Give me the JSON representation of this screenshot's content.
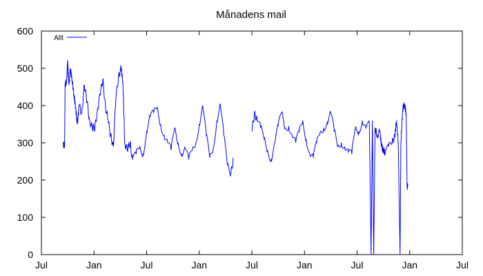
{
  "chart_data": {
    "type": "line",
    "title": "Månadens mail",
    "xlabel": "",
    "ylabel": "",
    "ylim": [
      0,
      600
    ],
    "y_ticks": [
      "0",
      "100",
      "200",
      "300",
      "400",
      "500",
      "600"
    ],
    "x_tick_labels": [
      "Jul",
      "Jan",
      "Jul",
      "Jan",
      "Jul",
      "Jan",
      "Jul",
      "Jan",
      "Jul"
    ],
    "x_range_months": [
      0,
      48
    ],
    "grid": false,
    "legend_position": "top-left",
    "series": [
      {
        "name": "Allt",
        "color": "#0000ff",
        "points": [
          [
            2.5,
            295
          ],
          [
            2.6,
            292
          ],
          [
            2.65,
            300
          ],
          [
            2.7,
            455
          ],
          [
            2.9,
            470
          ],
          [
            3.0,
            520
          ],
          [
            3.15,
            455
          ],
          [
            3.3,
            500
          ],
          [
            3.5,
            470
          ],
          [
            3.7,
            430
          ],
          [
            3.9,
            395
          ],
          [
            4.1,
            350
          ],
          [
            4.3,
            400
          ],
          [
            4.6,
            380
          ],
          [
            4.9,
            455
          ],
          [
            5.2,
            410
          ],
          [
            5.5,
            360
          ],
          [
            5.8,
            340
          ],
          [
            6.1,
            340
          ],
          [
            6.4,
            390
          ],
          [
            6.7,
            430
          ],
          [
            7.0,
            470
          ],
          [
            7.3,
            400
          ],
          [
            7.6,
            360
          ],
          [
            7.9,
            320
          ],
          [
            8.2,
            290
          ],
          [
            8.5,
            420
          ],
          [
            8.8,
            480
          ],
          [
            9.1,
            500
          ],
          [
            9.3,
            460
          ],
          [
            9.5,
            300
          ],
          [
            9.8,
            280
          ],
          [
            10.1,
            300
          ],
          [
            10.4,
            255
          ],
          [
            10.8,
            270
          ],
          [
            11.2,
            290
          ],
          [
            11.6,
            270
          ],
          [
            12.0,
            330
          ],
          [
            12.4,
            370
          ],
          [
            12.8,
            380
          ],
          [
            13.2,
            395
          ],
          [
            13.6,
            350
          ],
          [
            14.0,
            320
          ],
          [
            14.4,
            300
          ],
          [
            14.8,
            280
          ],
          [
            15.2,
            340
          ],
          [
            15.6,
            300
          ],
          [
            16.0,
            270
          ],
          [
            16.4,
            285
          ],
          [
            16.8,
            255
          ],
          [
            17.2,
            280
          ],
          [
            17.6,
            300
          ],
          [
            18.0,
            350
          ],
          [
            18.4,
            400
          ],
          [
            18.8,
            320
          ],
          [
            19.2,
            260
          ],
          [
            19.6,
            285
          ],
          [
            20.0,
            360
          ],
          [
            20.4,
            405
          ],
          [
            20.8,
            320
          ],
          [
            21.2,
            240
          ],
          [
            21.6,
            215
          ],
          [
            21.9,
            260
          ],
          [
            24.0,
            330
          ],
          [
            24.3,
            380
          ],
          [
            24.6,
            360
          ],
          [
            25.0,
            340
          ],
          [
            25.4,
            310
          ],
          [
            25.8,
            280
          ],
          [
            26.2,
            255
          ],
          [
            26.6,
            300
          ],
          [
            27.0,
            345
          ],
          [
            27.4,
            380
          ],
          [
            27.8,
            340
          ],
          [
            28.2,
            345
          ],
          [
            28.6,
            320
          ],
          [
            29.0,
            300
          ],
          [
            29.4,
            330
          ],
          [
            29.8,
            360
          ],
          [
            30.2,
            310
          ],
          [
            30.6,
            270
          ],
          [
            31.0,
            260
          ],
          [
            31.4,
            300
          ],
          [
            31.8,
            330
          ],
          [
            32.2,
            340
          ],
          [
            32.6,
            355
          ],
          [
            33.0,
            380
          ],
          [
            33.4,
            330
          ],
          [
            33.8,
            290
          ],
          [
            34.2,
            300
          ],
          [
            34.6,
            290
          ],
          [
            35.0,
            275
          ],
          [
            35.4,
            270
          ],
          [
            35.8,
            340
          ],
          [
            36.2,
            330
          ],
          [
            36.6,
            360
          ],
          [
            37.0,
            340
          ],
          [
            37.4,
            350
          ],
          [
            37.6,
            0
          ],
          [
            37.75,
            360
          ],
          [
            37.9,
            0
          ],
          [
            38.05,
            340
          ],
          [
            38.3,
            320
          ],
          [
            38.6,
            330
          ],
          [
            38.8,
            290
          ],
          [
            39.0,
            280
          ],
          [
            39.2,
            270
          ],
          [
            39.6,
            290
          ],
          [
            40.0,
            300
          ],
          [
            40.3,
            320
          ],
          [
            40.5,
            360
          ],
          [
            40.7,
            300
          ],
          [
            40.9,
            0
          ],
          [
            41.0,
            300
          ],
          [
            41.2,
            390
          ],
          [
            41.4,
            405
          ],
          [
            41.6,
            380
          ],
          [
            41.7,
            180
          ],
          [
            41.8,
            190
          ]
        ]
      }
    ]
  }
}
